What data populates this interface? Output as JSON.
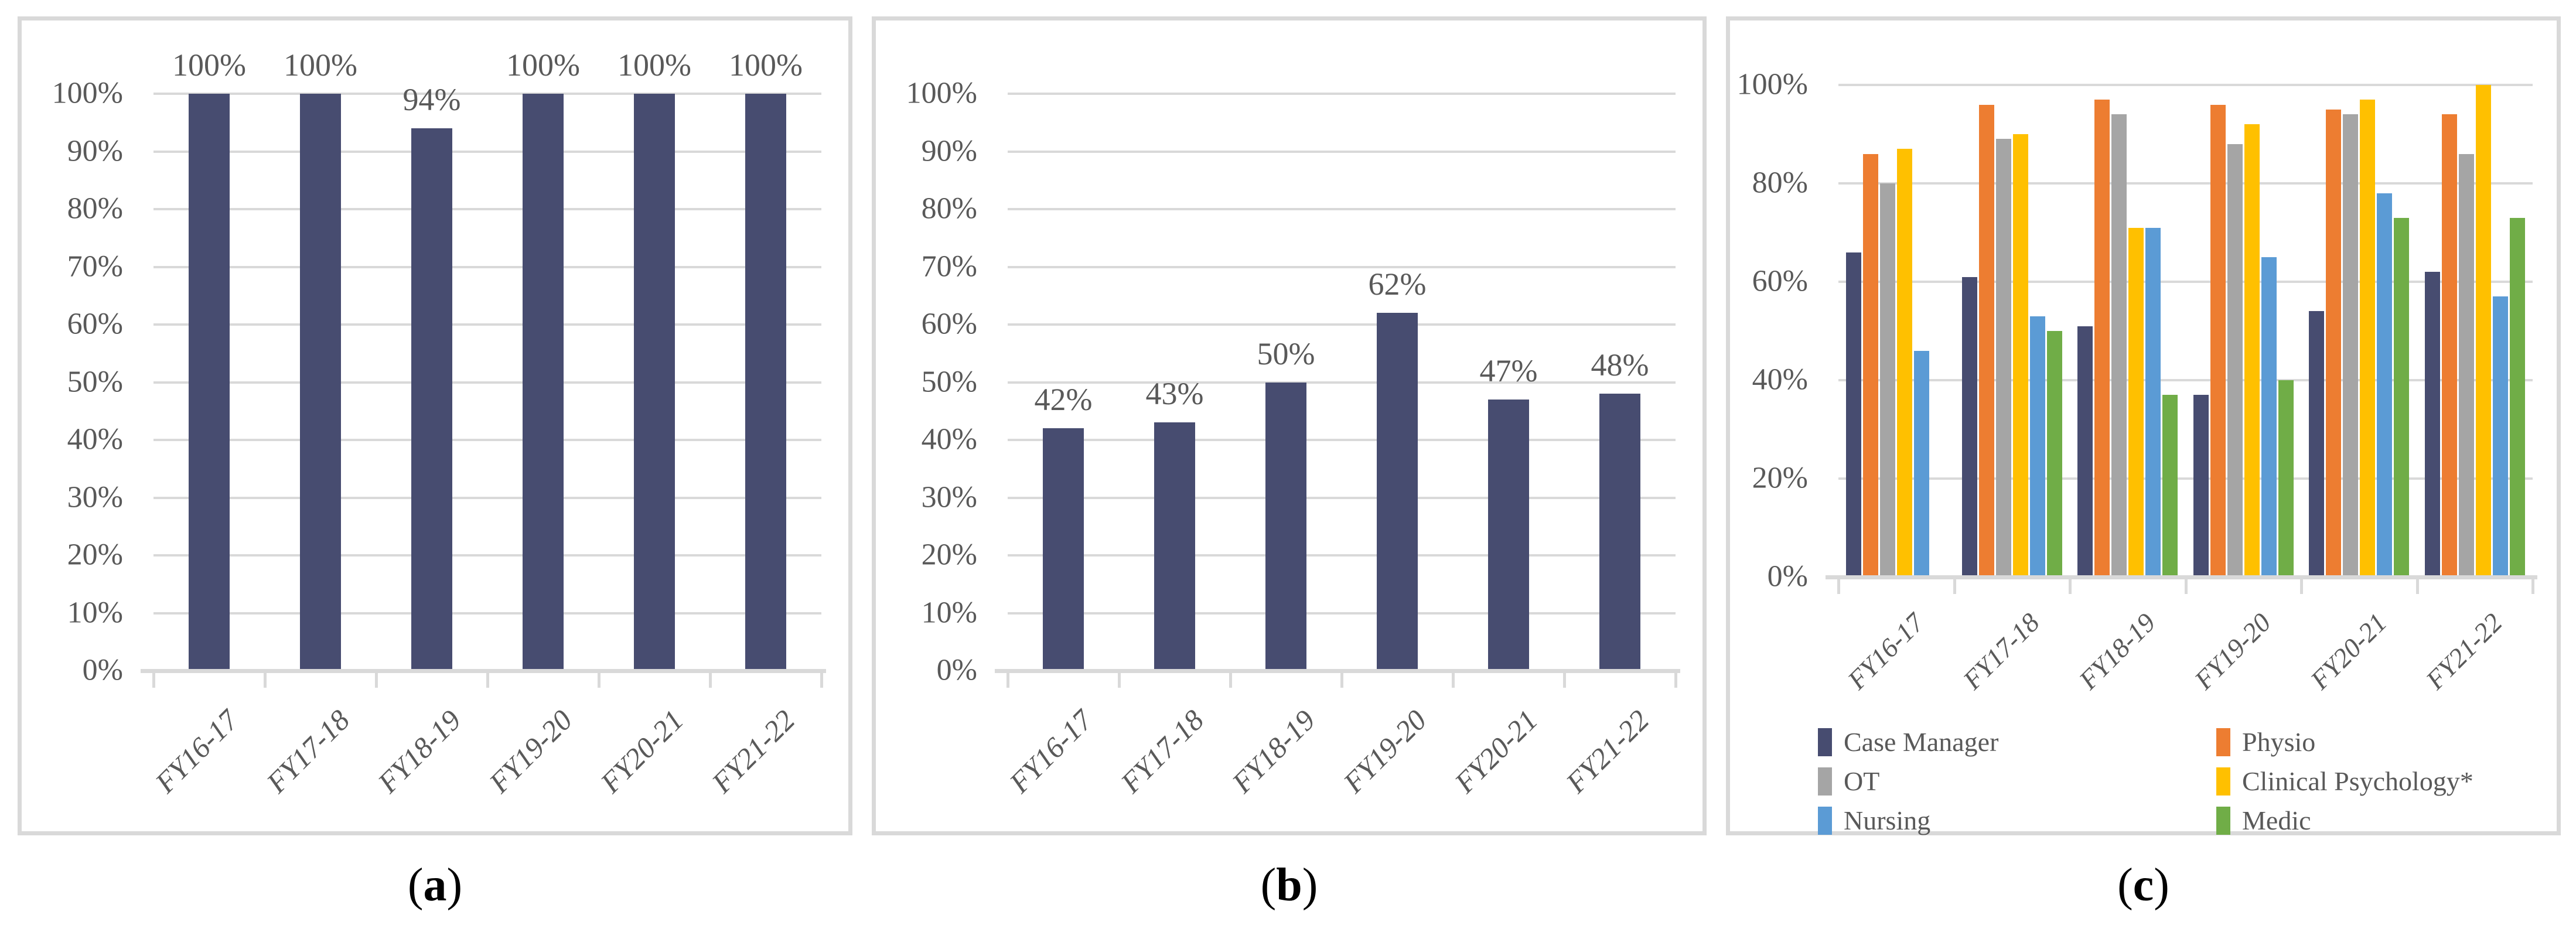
{
  "figure": {
    "captions": [
      {
        "open": "(",
        "letter": "a",
        "close": ")"
      },
      {
        "open": "(",
        "letter": "b",
        "close": ")"
      },
      {
        "open": "(",
        "letter": "c",
        "close": ")"
      }
    ]
  },
  "colors": {
    "navy": "#474C70",
    "orange": "#ED7D31",
    "gray": "#A5A5A5",
    "yellow": "#FFC000",
    "blue": "#5B9BD5",
    "green": "#70AD47",
    "grid": "#D9D9D9",
    "panel_border": "#D9D9D9",
    "axis_text": "#595959",
    "caption_text": "#000000"
  },
  "chart_data": [
    {
      "type": "bar",
      "title": "(a)",
      "categories": [
        "FY16-17",
        "FY17-18",
        "FY18-19",
        "FY19-20",
        "FY20-21",
        "FY21-22"
      ],
      "values": [
        100,
        100,
        94,
        100,
        100,
        100
      ],
      "data_labels": [
        "100%",
        "100%",
        "94%",
        "100%",
        "100%",
        "100%"
      ],
      "bar_color": "#474C70",
      "ylim": [
        0,
        100
      ],
      "ytick_step": 10,
      "ytick_labels": [
        "0%",
        "10%",
        "20%",
        "30%",
        "40%",
        "50%",
        "60%",
        "70%",
        "80%",
        "90%",
        "100%"
      ],
      "grid": true,
      "legend": false,
      "xlabel": "",
      "ylabel": ""
    },
    {
      "type": "bar",
      "title": "(b)",
      "categories": [
        "FY16-17",
        "FY17-18",
        "FY18-19",
        "FY19-20",
        "FY20-21",
        "FY21-22"
      ],
      "values": [
        42,
        43,
        50,
        62,
        47,
        48
      ],
      "data_labels": [
        "42%",
        "43%",
        "50%",
        "62%",
        "47%",
        "48%"
      ],
      "bar_color": "#474C70",
      "ylim": [
        0,
        100
      ],
      "ytick_step": 10,
      "ytick_labels": [
        "0%",
        "10%",
        "20%",
        "30%",
        "40%",
        "50%",
        "60%",
        "70%",
        "80%",
        "90%",
        "100%"
      ],
      "grid": true,
      "legend": false,
      "xlabel": "",
      "ylabel": ""
    },
    {
      "type": "grouped_bar",
      "title": "(c)",
      "categories": [
        "FY16-17",
        "FY17-18",
        "FY18-19",
        "FY19-20",
        "FY20-21",
        "FY21-22"
      ],
      "series": [
        {
          "name": "Case Manager",
          "color": "#474C70",
          "values": [
            66,
            61,
            51,
            37,
            54,
            62
          ]
        },
        {
          "name": "Physio",
          "color": "#ED7D31",
          "values": [
            86,
            96,
            97,
            96,
            95,
            94
          ]
        },
        {
          "name": "OT",
          "color": "#A5A5A5",
          "values": [
            80,
            89,
            94,
            88,
            94,
            86
          ]
        },
        {
          "name": "Clinical Psychology*",
          "color": "#FFC000",
          "values": [
            87,
            90,
            71,
            92,
            97,
            100
          ]
        },
        {
          "name": "Nursing",
          "color": "#5B9BD5",
          "values": [
            46,
            53,
            71,
            65,
            78,
            57
          ]
        },
        {
          "name": "Medic",
          "color": "#70AD47",
          "values": [
            null,
            50,
            37,
            40,
            73,
            73
          ]
        }
      ],
      "ylim": [
        0,
        100
      ],
      "ytick_step": 20,
      "ytick_labels": [
        "0%",
        "20%",
        "40%",
        "60%",
        "80%",
        "100%"
      ],
      "grid": true,
      "legend": true,
      "legend_position": "bottom",
      "legend_columns": 2,
      "xlabel": "",
      "ylabel": ""
    }
  ]
}
